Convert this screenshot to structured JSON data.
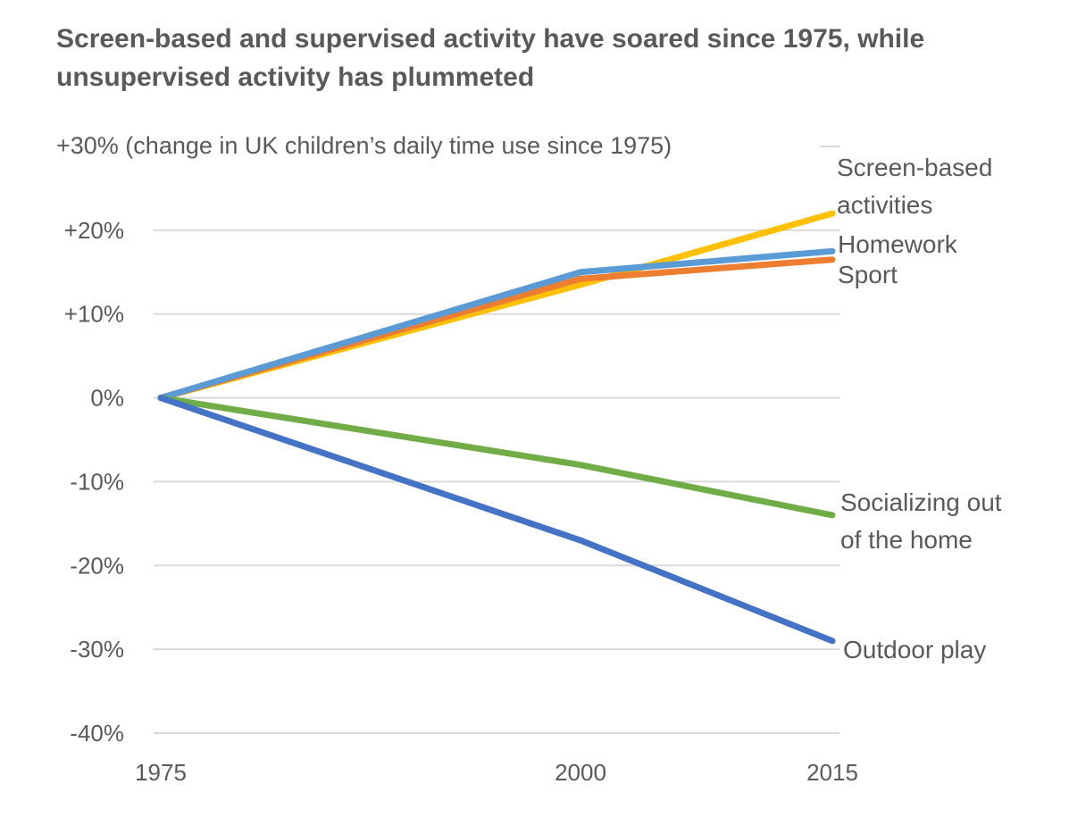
{
  "chart_data": {
    "type": "line",
    "title": "Screen-based and supervised activity have soared since 1975, while unsupervised activity has plummeted",
    "ylabel": "+30% (change in UK children’s daily time use since 1975)",
    "xlabel": "",
    "x": [
      1975,
      2000,
      2015
    ],
    "x_tick_labels": [
      "1975",
      "2000",
      "2015"
    ],
    "ylim": [
      -40,
      30
    ],
    "y_ticks": [
      30,
      20,
      10,
      0,
      -10,
      -20,
      -30,
      -40
    ],
    "y_tick_labels": [
      "",
      "+20%",
      "+10%",
      "0%",
      "-10%",
      "-20%",
      "-30%",
      "-40%"
    ],
    "grid": true,
    "legend": "direct labels at line ends",
    "series": [
      {
        "name": "Screen-based activities",
        "label_lines": [
          "Screen-based",
          "activities"
        ],
        "color": "#FFC000",
        "values": [
          0,
          13.5,
          22
        ]
      },
      {
        "name": "Sport",
        "label_lines": [
          "Sport"
        ],
        "color": "#ED7D31",
        "values": [
          0,
          14.2,
          16.5
        ]
      },
      {
        "name": "Homework",
        "label_lines": [
          "Homework"
        ],
        "color": "#5B9BD5",
        "values": [
          0,
          15,
          17.5
        ]
      },
      {
        "name": "Socializing out of the home",
        "label_lines": [
          "Socializing out",
          "of the home"
        ],
        "color": "#70AD47",
        "values": [
          0,
          -8,
          -14
        ]
      },
      {
        "name": "Outdoor play",
        "label_lines": [
          "Outdoor play"
        ],
        "color": "#4472C4",
        "values": [
          0,
          -17,
          -29
        ]
      }
    ]
  }
}
